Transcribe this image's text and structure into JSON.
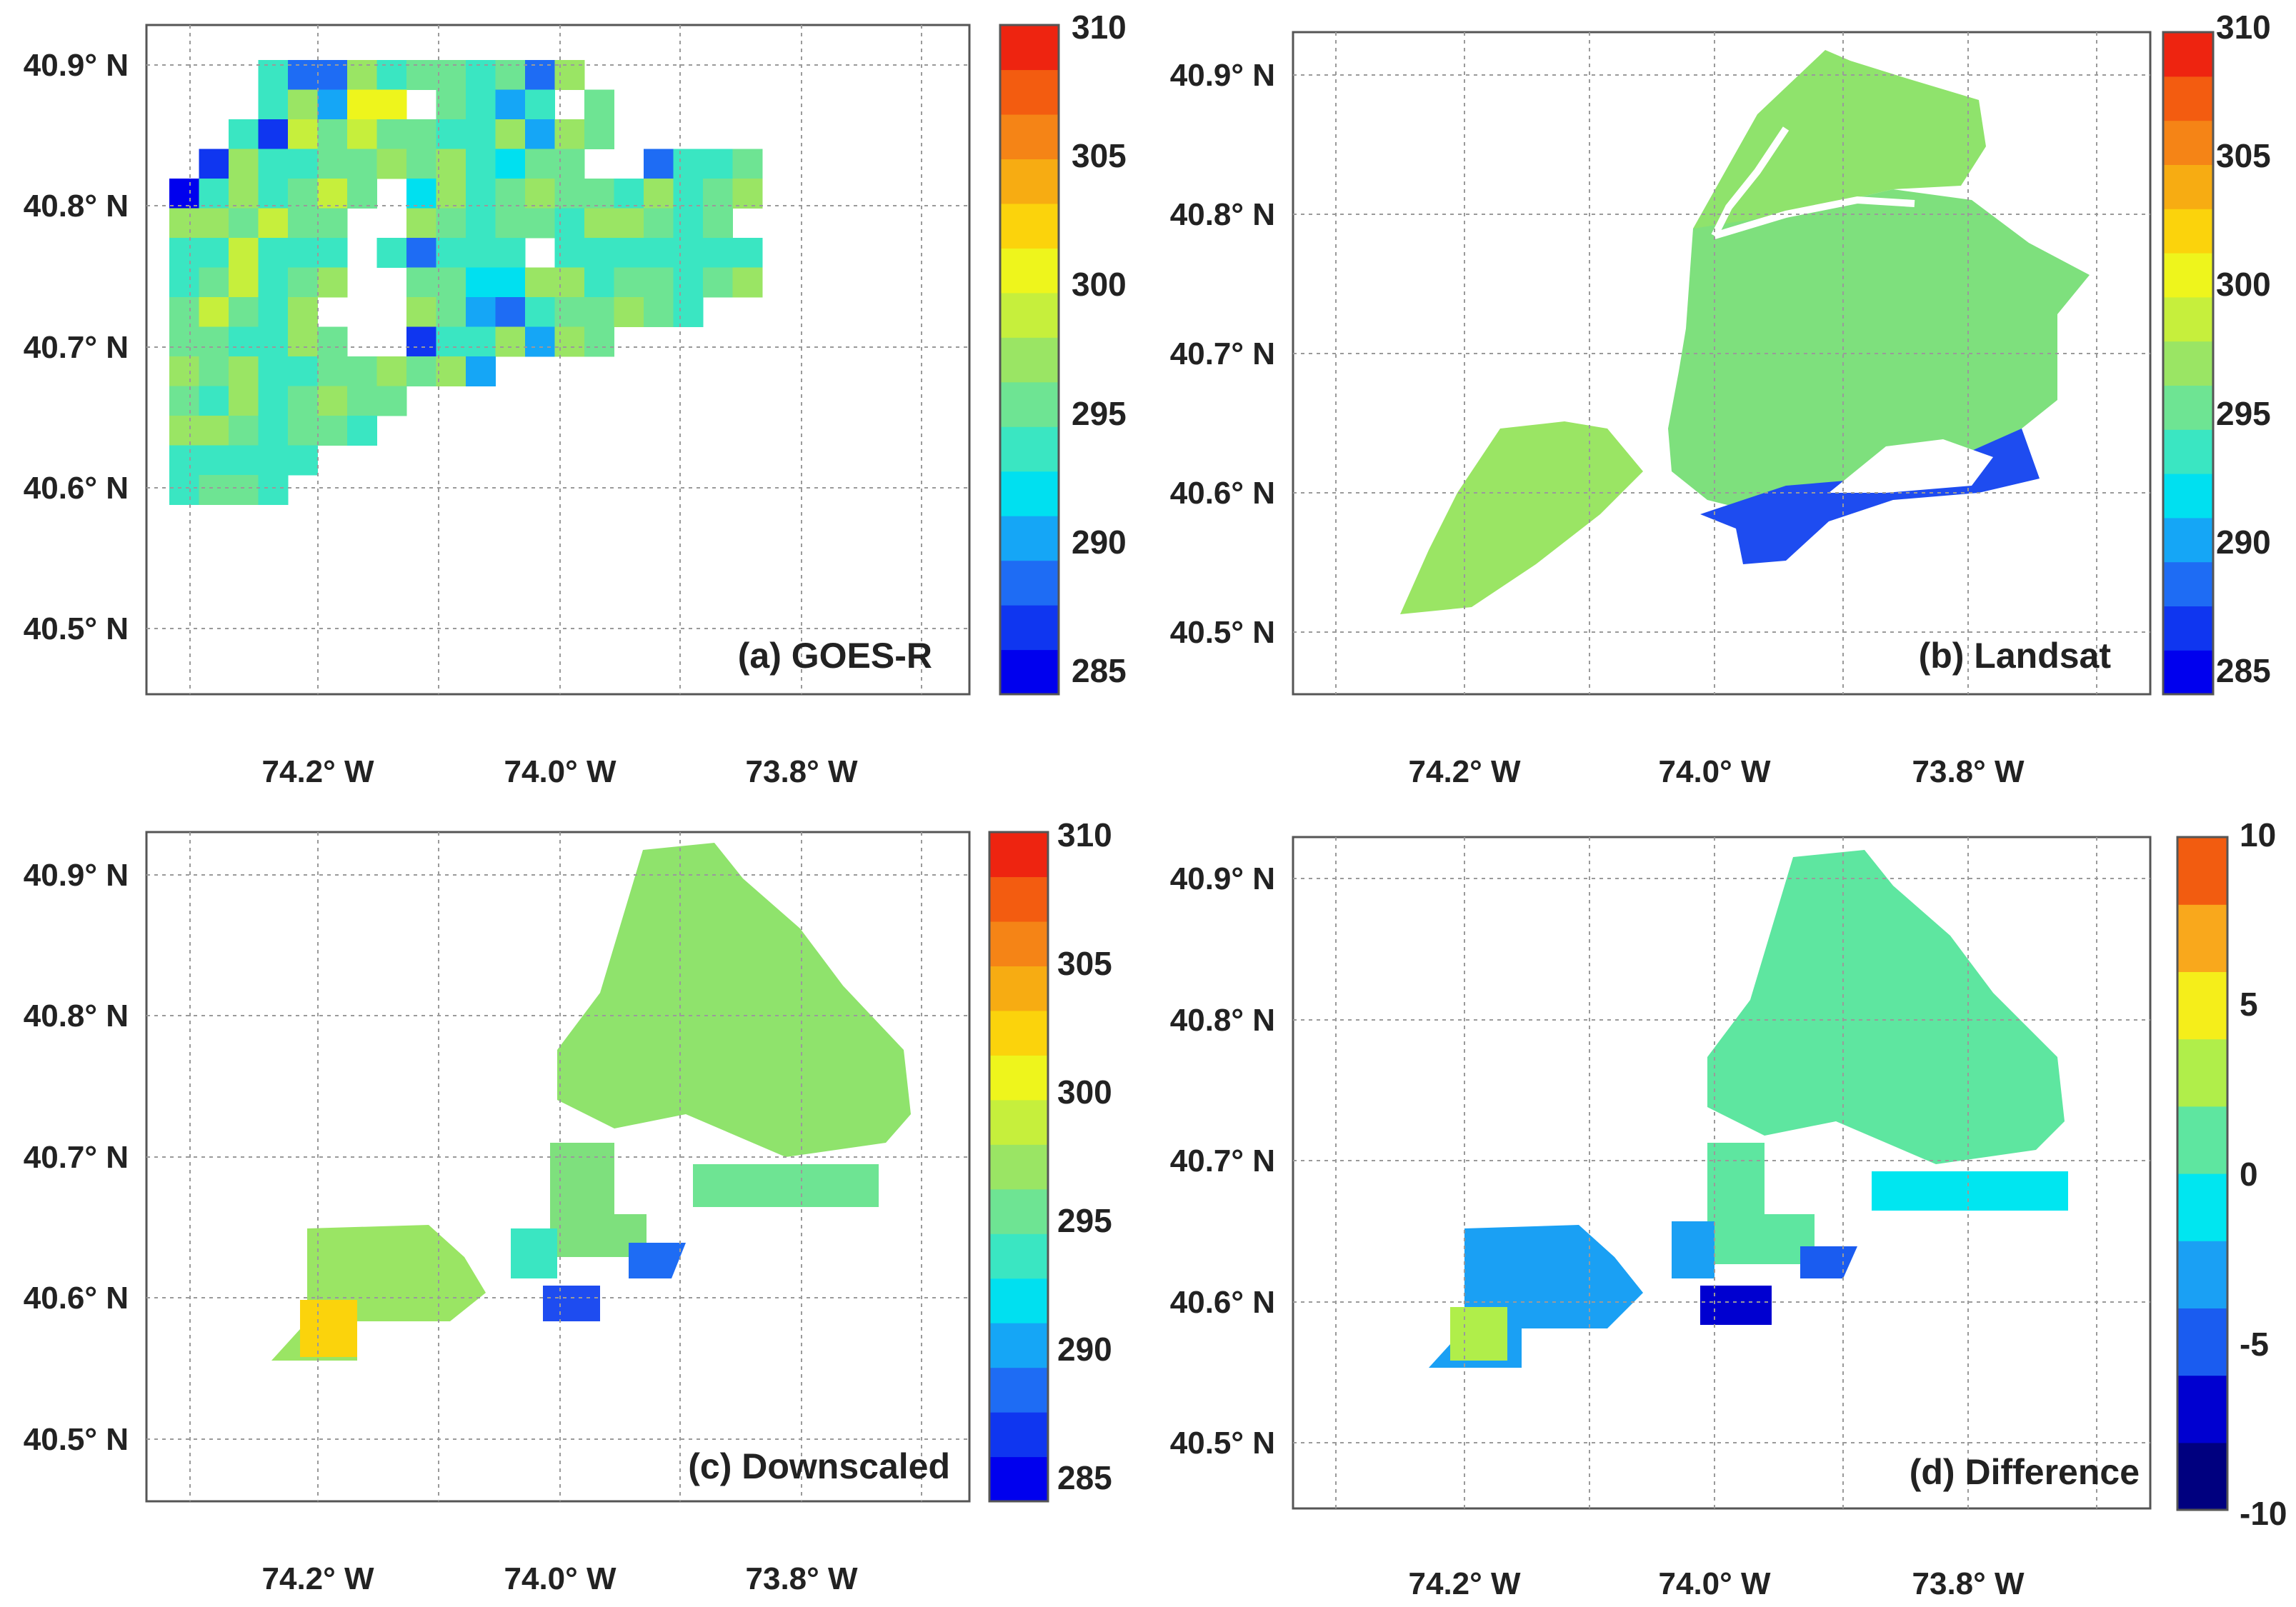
{
  "figure": {
    "lat_ticks": [
      "40.5° N",
      "40.6° N",
      "40.7° N",
      "40.8° N",
      "40.9° N"
    ],
    "lon_ticks": [
      "74.2° W",
      "74.0° W",
      "73.8° W"
    ],
    "lat_values": [
      40.5,
      40.6,
      40.7,
      40.8,
      40.9
    ],
    "lon_values": [
      -74.2,
      -74.0,
      -73.8
    ],
    "lat_range": [
      40.45,
      40.93
    ],
    "lon_range": [
      -74.36,
      -73.68
    ],
    "panels": [
      {
        "id": "a",
        "label": "(a) GOES-R",
        "colorbar_ticks": [
          "285",
          "290",
          "295",
          "300",
          "305",
          "310"
        ],
        "colorbar_range": [
          284,
          310
        ],
        "colors": [
          "#0000ee",
          "#0f36f0",
          "#1e6cf4",
          "#15a6f6",
          "#00e0f0",
          "#3ae6c2",
          "#6ee493",
          "#9ae564",
          "#c6ef3c",
          "#eef51c",
          "#fbd30c",
          "#f7ac12",
          "#f58416",
          "#f35c10",
          "#ee2410"
        ],
        "content": "coarse-grid temperature field, mostly 294–298 with cooler cells along the water"
      },
      {
        "id": "b",
        "label": "(b) Landsat",
        "colorbar_ticks": [
          "285",
          "290",
          "295",
          "300",
          "305",
          "310"
        ],
        "colorbar_range": [
          284,
          310
        ],
        "colors": [
          "#0000ee",
          "#0f36f0",
          "#1e6cf4",
          "#15a6f6",
          "#00e0f0",
          "#3ae6c2",
          "#6ee493",
          "#9ae564",
          "#c6ef3c",
          "#eef51c",
          "#fbd30c",
          "#f7ac12",
          "#f58416",
          "#f35c10",
          "#ee2410"
        ],
        "content": "fine-resolution temperature over the city boroughs, mostly 294–299, cold (285) along the southern bay shore"
      },
      {
        "id": "c",
        "label": "(c) Downscaled",
        "colorbar_ticks": [
          "285",
          "290",
          "295",
          "300",
          "305",
          "310"
        ],
        "colorbar_range": [
          284,
          310
        ],
        "colors": [
          "#0000ee",
          "#0f36f0",
          "#1e6cf4",
          "#15a6f6",
          "#00e0f0",
          "#3ae6c2",
          "#6ee493",
          "#9ae564",
          "#c6ef3c",
          "#eef51c",
          "#fbd30c",
          "#f7ac12",
          "#f58416",
          "#f35c10",
          "#ee2410"
        ],
        "content": "downscaled temperature on blocky coverage, mostly 295–299 with warm spots in the southwest"
      },
      {
        "id": "d",
        "label": "(d) Difference",
        "colorbar_ticks": [
          "-10",
          "-5",
          "0",
          "5",
          "10"
        ],
        "colorbar_range": [
          -10,
          10
        ],
        "colors": [
          "#00007f",
          "#0000d0",
          "#1a5cf0",
          "#1aa0f4",
          "#00e6f0",
          "#5ee6a0",
          "#b0ee4a",
          "#f5ee1a",
          "#f9a81c",
          "#f25c10"
        ],
        "content": "difference field, mostly -2 to +2 with negative values near the water"
      }
    ]
  }
}
